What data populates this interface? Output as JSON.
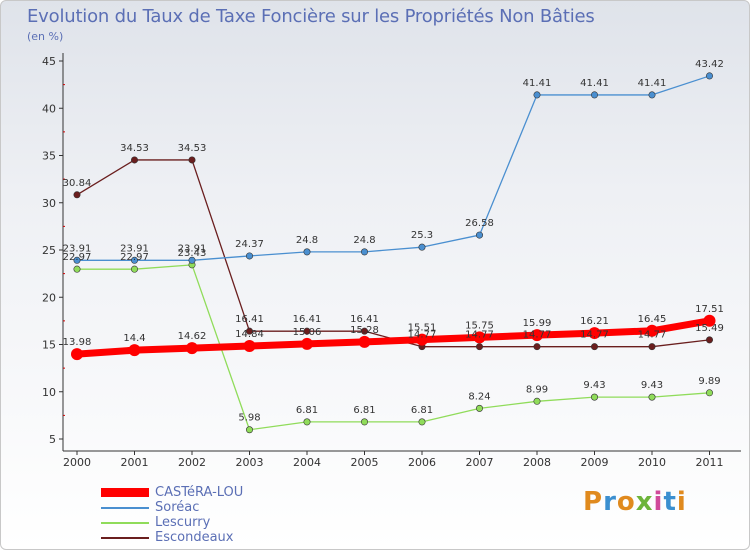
{
  "title": "Evolution du Taux de Taxe Foncière sur les Propriétés Non Bâties",
  "subtitle": "(en %)",
  "logo": {
    "text": "Proxiti",
    "colors": [
      "#e08a1e",
      "#3b8fd0",
      "#e08a1e",
      "#6db43a",
      "#d04a9a",
      "#3b8fd0",
      "#e08a1e"
    ]
  },
  "chart_data": {
    "type": "line",
    "title": "Evolution du Taux de Taxe Foncière sur les Propriétés Non Bâties",
    "ylabel": "(en %)",
    "x": [
      "2000",
      "2001",
      "2002",
      "2003",
      "2004",
      "2005",
      "2006",
      "2007",
      "2008",
      "2009",
      "2010",
      "2011"
    ],
    "yticks": [
      5,
      10,
      15,
      20,
      25,
      30,
      35,
      40,
      45
    ],
    "ylim": [
      5,
      45
    ],
    "grid": false,
    "series": [
      {
        "name": "CASTéRA-LOU",
        "color": "#ff0000",
        "values": [
          13.98,
          14.4,
          14.62,
          14.84,
          15.06,
          15.28,
          15.51,
          15.75,
          15.99,
          16.21,
          16.45,
          17.51
        ],
        "labels": [
          "13.98",
          "14.4",
          "14.62",
          "14.84",
          "15.06",
          "15.28",
          "15.51",
          "15.75",
          "15.99",
          "16.21",
          "16.45",
          "17.51"
        ]
      },
      {
        "name": "Soréac",
        "color": "#4a8fd0",
        "values": [
          23.91,
          23.91,
          23.91,
          24.37,
          24.8,
          24.8,
          25.3,
          26.58,
          41.41,
          41.41,
          41.41,
          43.42
        ],
        "labels": [
          "23.91",
          "23.91",
          "23.91",
          "24.37",
          "24.8",
          "24.8",
          "25.3",
          "26.58",
          "41.41",
          "41.41",
          "41.41",
          "43.42"
        ]
      },
      {
        "name": "Lescurry",
        "color": "#90dc5a",
        "values": [
          22.97,
          22.97,
          23.43,
          5.98,
          6.81,
          6.81,
          6.81,
          8.24,
          8.99,
          9.43,
          9.43,
          9.89
        ],
        "labels": [
          "22.97",
          "22.97",
          "23.43",
          "5.98",
          "6.81",
          "6.81",
          "6.81",
          "8.24",
          "8.99",
          "9.43",
          "9.43",
          "9.89"
        ]
      },
      {
        "name": "Escondeaux",
        "color": "#6a1e1e",
        "values": [
          30.84,
          34.53,
          34.53,
          16.41,
          16.41,
          16.41,
          14.77,
          14.77,
          14.77,
          14.77,
          14.77,
          15.49
        ],
        "labels": [
          "30.84",
          "34.53",
          "34.53",
          "16.41",
          "16.41",
          "16.41",
          "14.77",
          "14.77",
          "14.77",
          "14.77",
          "14.77",
          "15.49"
        ]
      }
    ]
  }
}
